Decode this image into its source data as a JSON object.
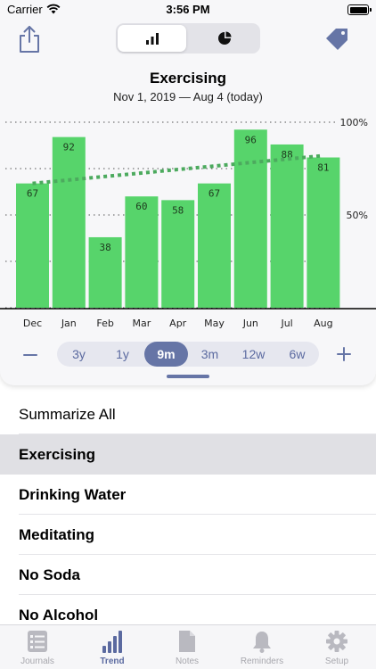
{
  "status": {
    "carrier": "Carrier",
    "time": "3:56 PM"
  },
  "colors": {
    "bar": "#57d46b",
    "trend": "#4caa5e",
    "accent": "#6675a6",
    "inactive": "#b9b9c0"
  },
  "toolbar": {
    "share_icon": "share-icon",
    "tag_icon": "tag-icon",
    "segments": [
      {
        "icon": "bar-chart-icon",
        "selected": true
      },
      {
        "icon": "pie-chart-icon",
        "selected": false
      }
    ]
  },
  "chart_header": {
    "title": "Exercising",
    "subtitle": "Nov 1, 2019 — Aug 4 (today)"
  },
  "chart_data": {
    "type": "bar",
    "categories": [
      "Dec",
      "Jan",
      "Feb",
      "Mar",
      "Apr",
      "May",
      "Jun",
      "Jul",
      "Aug"
    ],
    "values": [
      67,
      92,
      38,
      60,
      58,
      67,
      96,
      88,
      81
    ],
    "y_tick_labels": [
      "100%",
      "50%"
    ],
    "y_ticks": [
      100,
      50
    ],
    "ylim": [
      0,
      100
    ],
    "trend_line": {
      "style": "dotted",
      "start": 67,
      "end": 82
    },
    "grid": "dotted horizontal at 0, 25, 50, 75, 100",
    "title": "Exercising"
  },
  "range_selector": {
    "minus": "−",
    "plus": "+",
    "options": [
      "3y",
      "1y",
      "9m",
      "3m",
      "12w",
      "6w"
    ],
    "selected": "9m"
  },
  "list": {
    "summary": "Summarize All",
    "items": [
      "Exercising",
      "Drinking Water",
      "Meditating",
      "No Soda",
      "No Alcohol"
    ],
    "selected": "Exercising"
  },
  "tabs": [
    {
      "label": "Journals",
      "icon": "journals-icon",
      "active": false
    },
    {
      "label": "Trend",
      "icon": "trend-icon",
      "active": true
    },
    {
      "label": "Notes",
      "icon": "notes-icon",
      "active": false
    },
    {
      "label": "Reminders",
      "icon": "bell-icon",
      "active": false
    },
    {
      "label": "Setup",
      "icon": "gear-icon",
      "active": false
    }
  ]
}
